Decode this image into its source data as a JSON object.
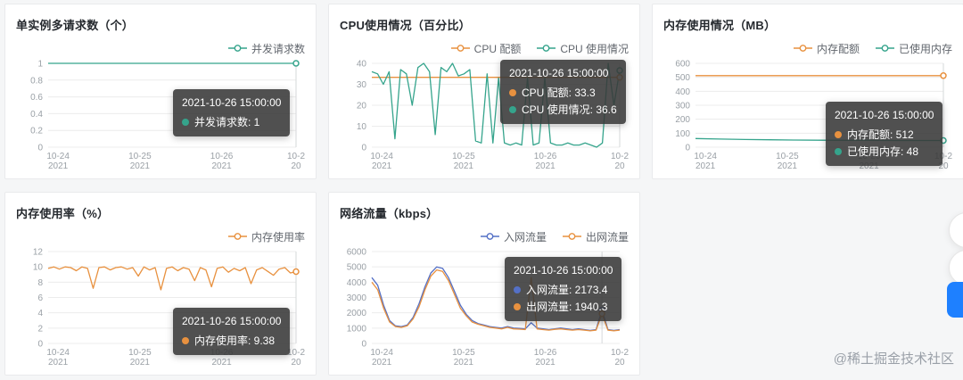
{
  "page": {
    "watermark": "@稀土掘金技术社区"
  },
  "panels": [
    {
      "title": "单实例多请求数（个）",
      "tooltip": {
        "time": "2021-10-26 15:00:00",
        "rows": [
          {
            "label": "并发请求数",
            "value": "1"
          }
        ]
      }
    },
    {
      "title": "CPU使用情况（百分比）",
      "tooltip": {
        "time": "2021-10-26 15:00:00",
        "rows": [
          {
            "label": "CPU 配额",
            "value": "33.3"
          },
          {
            "label": "CPU 使用情况",
            "value": "36.6"
          }
        ]
      }
    },
    {
      "title": "内存使用情况（MB）",
      "tooltip": {
        "time": "2021-10-26 15:00:00",
        "rows": [
          {
            "label": "内存配额",
            "value": "512"
          },
          {
            "label": "已使用内存",
            "value": "48"
          }
        ]
      }
    },
    {
      "title": "内存使用率（%）",
      "tooltip": {
        "time": "2021-10-26 15:00:00",
        "rows": [
          {
            "label": "内存使用率",
            "value": "9.38"
          }
        ]
      }
    },
    {
      "title": "网络流量（kbps）",
      "tooltip": {
        "time": "2021-10-26 15:00:00",
        "rows": [
          {
            "label": "入网流量",
            "value": "2173.4"
          },
          {
            "label": "出网流量",
            "value": "1940.3"
          }
        ]
      }
    }
  ],
  "chart_data": [
    {
      "type": "line",
      "y_ticks": [
        0,
        0.2,
        0.4,
        0.6,
        0.8,
        1
      ],
      "x_ticks": [
        {
          "t": "10-24",
          "y": "2021",
          "f": 0.04
        },
        {
          "t": "10-25",
          "y": "2021",
          "f": 0.37
        },
        {
          "t": "10-26",
          "y": "2021",
          "f": 0.7
        },
        {
          "t": "10-2",
          "y": "20",
          "f": 1.0
        }
      ],
      "series": [
        {
          "name": "并发请求数",
          "color": "#35a48c",
          "values": [
            1,
            1,
            1,
            1,
            1,
            1,
            1,
            1,
            1,
            1,
            1
          ]
        }
      ]
    },
    {
      "type": "line",
      "y_ticks": [
        0,
        10,
        20,
        30,
        40
      ],
      "x_ticks": [
        {
          "t": "10-24",
          "y": "2021",
          "f": 0.04
        },
        {
          "t": "10-25",
          "y": "2021",
          "f": 0.37
        },
        {
          "t": "10-26",
          "y": "2021",
          "f": 0.7
        },
        {
          "t": "10-2",
          "y": "20",
          "f": 1.0
        }
      ],
      "series": [
        {
          "name": "CPU 配额",
          "color": "#e8913f",
          "values": [
            33.3,
            33.3,
            33.3,
            33.3,
            33.3,
            33.3,
            33.3,
            33.3,
            33.3,
            33.3,
            33.3
          ]
        },
        {
          "name": "CPU 使用情况",
          "color": "#35a48c",
          "values": [
            36,
            35,
            30,
            36,
            4,
            37,
            35,
            20,
            38,
            40,
            36,
            6,
            38,
            36,
            40,
            34,
            35,
            37,
            3,
            2,
            35,
            2,
            33,
            2,
            1,
            2,
            1,
            33,
            1,
            2,
            33,
            2,
            1,
            1,
            2,
            1,
            1,
            2,
            1,
            0,
            2,
            40,
            20,
            36.6
          ]
        }
      ]
    },
    {
      "type": "line",
      "y_ticks": [
        0,
        100,
        200,
        300,
        400,
        500,
        600
      ],
      "x_ticks": [
        {
          "t": "10-24",
          "y": "2021",
          "f": 0.04
        },
        {
          "t": "10-25",
          "y": "2021",
          "f": 0.37
        },
        {
          "t": "10-26",
          "y": "2021",
          "f": 0.7
        },
        {
          "t": "10-2",
          "y": "20",
          "f": 1.0
        }
      ],
      "series": [
        {
          "name": "内存配额",
          "color": "#e8913f",
          "values": [
            512,
            512,
            512,
            512,
            512,
            512,
            512,
            512,
            512,
            512,
            512
          ]
        },
        {
          "name": "已使用内存",
          "color": "#35a48c",
          "values": [
            62,
            58,
            55,
            53,
            51,
            50,
            49,
            49,
            48,
            48,
            48
          ]
        }
      ]
    },
    {
      "type": "line",
      "y_ticks": [
        0,
        2,
        4,
        6,
        8,
        10,
        12
      ],
      "x_ticks": [
        {
          "t": "10-24",
          "y": "2021",
          "f": 0.04
        },
        {
          "t": "10-25",
          "y": "2021",
          "f": 0.37
        },
        {
          "t": "10-26",
          "y": "2021",
          "f": 0.7
        },
        {
          "t": "10-2",
          "y": "20",
          "f": 1.0
        }
      ],
      "series": [
        {
          "name": "内存使用率",
          "color": "#e8913f",
          "values": [
            9.8,
            10,
            9.7,
            10,
            9.9,
            9.5,
            10,
            9.8,
            7.2,
            9.9,
            10,
            9.6,
            9.9,
            10,
            9.7,
            9.9,
            8.8,
            10,
            9.6,
            9.9,
            7,
            9.8,
            10,
            9.5,
            9.9,
            9.7,
            8.2,
            9.9,
            9.6,
            7.4,
            9.8,
            10,
            9.3,
            9.8,
            9.5,
            9.9,
            7.8,
            9.6,
            9.9,
            9.4,
            8.9,
            9.7,
            9.9,
            9.2,
            9.38
          ]
        }
      ]
    },
    {
      "type": "line",
      "y_ticks": [
        0,
        1000,
        2000,
        3000,
        4000,
        5000,
        6000
      ],
      "x_ticks": [
        {
          "t": "10-24",
          "y": "2021",
          "f": 0.04
        },
        {
          "t": "10-25",
          "y": "2021",
          "f": 0.37
        },
        {
          "t": "10-26",
          "y": "2021",
          "f": 0.7
        },
        {
          "t": "10-2",
          "y": "20",
          "f": 1.0
        }
      ],
      "hover_index": 39,
      "series": [
        {
          "name": "入网流量",
          "color": "#5470c6",
          "values": [
            4300,
            3800,
            2500,
            1500,
            1150,
            1100,
            1200,
            1700,
            2600,
            3700,
            4600,
            5000,
            4900,
            4300,
            3400,
            2500,
            1900,
            1500,
            1300,
            1200,
            1100,
            1050,
            1000,
            1100,
            1000,
            980,
            950,
            1350,
            1000,
            950,
            900,
            950,
            1000,
            950,
            900,
            950,
            900,
            850,
            900,
            2173.4,
            900,
            850,
            900
          ]
        },
        {
          "name": "出网流量",
          "color": "#e8913f",
          "values": [
            4000,
            3500,
            2300,
            1400,
            1100,
            1050,
            1150,
            1600,
            2400,
            3500,
            4400,
            4800,
            4700,
            4100,
            3200,
            2300,
            1800,
            1400,
            1250,
            1150,
            1050,
            1000,
            950,
            1050,
            950,
            930,
            900,
            4300,
            950,
            900,
            870,
            920,
            950,
            900,
            870,
            900,
            870,
            820,
            870,
            1940.3,
            870,
            820,
            870
          ]
        }
      ]
    }
  ],
  "floating_buttons": [
    {
      "name": "floating-circle-button-1"
    },
    {
      "name": "floating-circle-button-2"
    },
    {
      "name": "floating-blue-button"
    }
  ]
}
